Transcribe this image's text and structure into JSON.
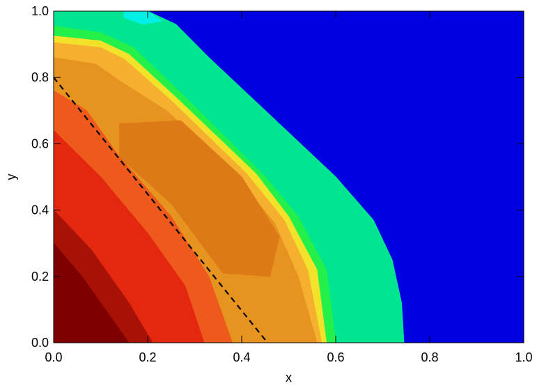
{
  "chart_data": {
    "type": "heatmap",
    "title": "",
    "xlabel": "x",
    "ylabel": "y",
    "xlim": [
      0.0,
      1.0
    ],
    "ylim": [
      0.0,
      1.0
    ],
    "x_ticks": [
      0.0,
      0.2,
      0.4,
      0.6,
      0.8,
      1.0
    ],
    "y_ticks": [
      0.0,
      0.2,
      0.4,
      0.6,
      0.8,
      1.0
    ],
    "x_tick_labels": [
      "0.0",
      "0.2",
      "0.4",
      "0.6",
      "0.8",
      "1.0"
    ],
    "y_tick_labels": [
      "0.0",
      "0.2",
      "0.4",
      "0.6",
      "0.8",
      "1.0"
    ],
    "grid": false,
    "legend": "none",
    "colormap": "rainbow (blue low, red high)",
    "background_color": "#0000e0",
    "filled_regions": [
      {
        "name": "outer-green-shell",
        "color": "#00e690",
        "boundary": [
          [
            0.0,
            1.0
          ],
          [
            0.2,
            1.0
          ],
          [
            0.26,
            0.96
          ],
          [
            0.33,
            0.86
          ],
          [
            0.45,
            0.7
          ],
          [
            0.6,
            0.5
          ],
          [
            0.68,
            0.37
          ],
          [
            0.72,
            0.25
          ],
          [
            0.74,
            0.12
          ],
          [
            0.745,
            0.0
          ],
          [
            0.0,
            0.0
          ]
        ]
      },
      {
        "name": "cyan-edge",
        "color": "#00f0e6",
        "boundary": [
          [
            0.15,
            1.0
          ],
          [
            0.2,
            1.0
          ],
          [
            0.23,
            0.97
          ],
          [
            0.19,
            0.96
          ],
          [
            0.15,
            0.98
          ]
        ]
      },
      {
        "name": "green-band",
        "color": "#23f04a",
        "boundary": [
          [
            0.0,
            0.955
          ],
          [
            0.1,
            0.935
          ],
          [
            0.17,
            0.89
          ],
          [
            0.28,
            0.74
          ],
          [
            0.45,
            0.5
          ],
          [
            0.52,
            0.38
          ],
          [
            0.58,
            0.22
          ],
          [
            0.6,
            0.0
          ],
          [
            0.0,
            0.0
          ]
        ]
      },
      {
        "name": "yellow-band",
        "color": "#f2e22a",
        "boundary": [
          [
            0.0,
            0.925
          ],
          [
            0.1,
            0.91
          ],
          [
            0.16,
            0.87
          ],
          [
            0.26,
            0.74
          ],
          [
            0.43,
            0.51
          ],
          [
            0.5,
            0.38
          ],
          [
            0.56,
            0.22
          ],
          [
            0.58,
            0.0
          ],
          [
            0.0,
            0.0
          ]
        ]
      },
      {
        "name": "light-orange-band",
        "color": "#f5b030",
        "boundary": [
          [
            0.0,
            0.905
          ],
          [
            0.1,
            0.89
          ],
          [
            0.15,
            0.855
          ],
          [
            0.25,
            0.73
          ],
          [
            0.41,
            0.51
          ],
          [
            0.49,
            0.37
          ],
          [
            0.54,
            0.22
          ],
          [
            0.57,
            0.0
          ],
          [
            0.0,
            0.0
          ]
        ]
      },
      {
        "name": "orange-plateau",
        "color": "#e7931f",
        "boundary": [
          [
            0.0,
            0.86
          ],
          [
            0.09,
            0.84
          ],
          [
            0.14,
            0.79
          ],
          [
            0.24,
            0.7
          ],
          [
            0.39,
            0.5
          ],
          [
            0.47,
            0.36
          ],
          [
            0.52,
            0.2
          ],
          [
            0.56,
            0.0
          ],
          [
            0.0,
            0.0
          ]
        ]
      },
      {
        "name": "dark-orange-core",
        "color": "#dc7a18",
        "boundary": [
          [
            0.14,
            0.66
          ],
          [
            0.27,
            0.67
          ],
          [
            0.4,
            0.5
          ],
          [
            0.48,
            0.32
          ],
          [
            0.46,
            0.2
          ],
          [
            0.36,
            0.21
          ],
          [
            0.25,
            0.42
          ],
          [
            0.14,
            0.56
          ]
        ]
      },
      {
        "name": "orange-red-zone",
        "color": "#ee5a1c",
        "boundary": [
          [
            0.0,
            0.76
          ],
          [
            0.07,
            0.7
          ],
          [
            0.14,
            0.56
          ],
          [
            0.25,
            0.38
          ],
          [
            0.33,
            0.2
          ],
          [
            0.38,
            0.0
          ],
          [
            0.0,
            0.0
          ]
        ]
      },
      {
        "name": "red-zone",
        "color": "#e42810",
        "boundary": [
          [
            0.0,
            0.64
          ],
          [
            0.1,
            0.5
          ],
          [
            0.2,
            0.33
          ],
          [
            0.28,
            0.17
          ],
          [
            0.32,
            0.0
          ],
          [
            0.0,
            0.0
          ]
        ]
      },
      {
        "name": "dark-red-zone",
        "color": "#a81206",
        "boundary": [
          [
            0.0,
            0.4
          ],
          [
            0.08,
            0.28
          ],
          [
            0.16,
            0.12
          ],
          [
            0.21,
            0.0
          ],
          [
            0.0,
            0.0
          ]
        ]
      },
      {
        "name": "maroon-core",
        "color": "#7e0000",
        "boundary": [
          [
            0.0,
            0.3
          ],
          [
            0.06,
            0.2
          ],
          [
            0.12,
            0.08
          ],
          [
            0.16,
            0.0
          ],
          [
            0.0,
            0.0
          ]
        ]
      }
    ],
    "annotations": [
      {
        "type": "dashed-line",
        "color": "#000000",
        "from": [
          0.0,
          0.8
        ],
        "to": [
          0.455,
          0.0
        ]
      }
    ]
  }
}
